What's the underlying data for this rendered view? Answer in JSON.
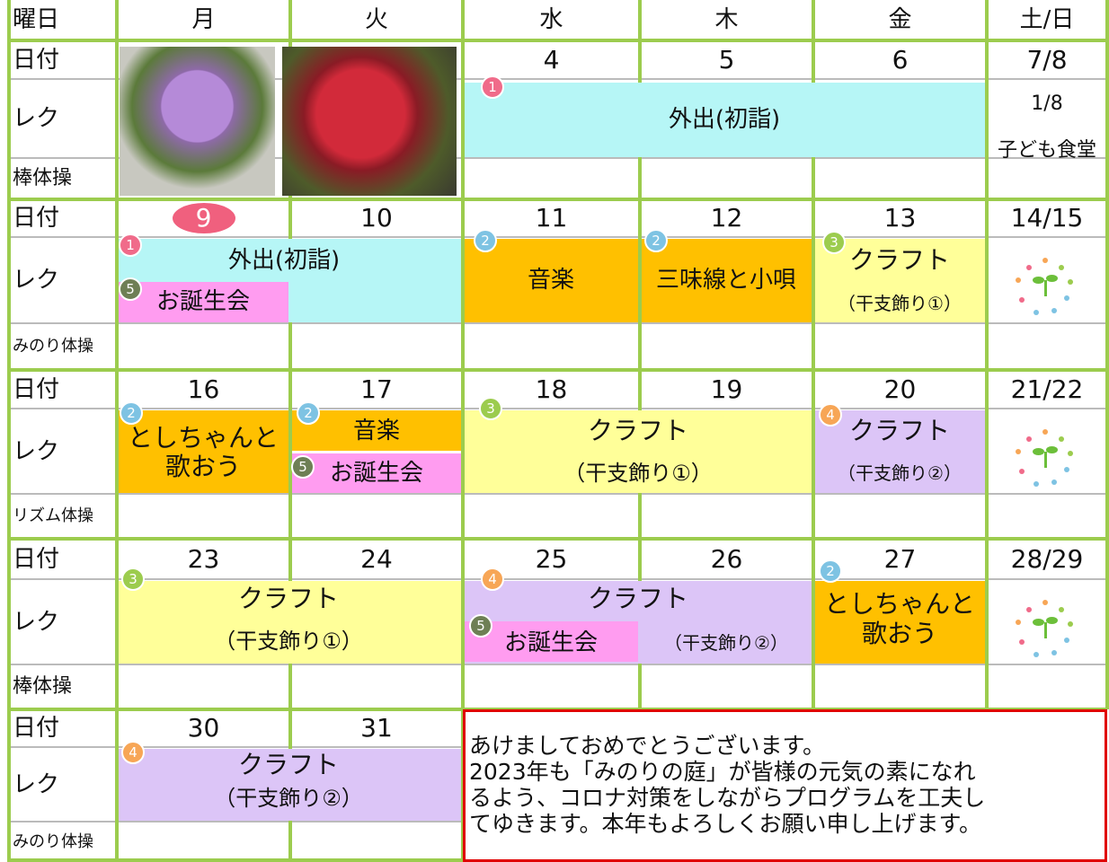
{
  "header": [
    "曜日",
    "月",
    "火",
    "水",
    "木",
    "金",
    "土/日"
  ],
  "weeks": [
    {
      "labels": [
        "日付",
        "レク",
        "棒体操"
      ],
      "dates": [
        null,
        null,
        "4",
        "5",
        "6",
        "7/8"
      ],
      "note": [
        "1/8",
        "子ども食堂"
      ],
      "events": [
        {
          "badge": "1",
          "text": [
            "外出(初詣)"
          ]
        }
      ]
    },
    {
      "labels": [
        "日付",
        "レク",
        "みのり体操"
      ],
      "dates": [
        "9",
        "10",
        "11",
        "12",
        "13",
        "14/15"
      ],
      "events": [
        {
          "badge": "1",
          "text": [
            "外出(初詣)"
          ]
        },
        {
          "badge": "5",
          "text": [
            "お誕生会"
          ]
        },
        {
          "badge": "2",
          "text": [
            "音楽"
          ]
        },
        {
          "badge": "2",
          "text": [
            "三味線と小唄"
          ]
        },
        {
          "badge": "3",
          "text": [
            "クラフト",
            "（干支飾り①）"
          ]
        }
      ]
    },
    {
      "labels": [
        "日付",
        "レク",
        "リズム体操"
      ],
      "dates": [
        "16",
        "17",
        "18",
        "19",
        "20",
        "21/22"
      ],
      "events": [
        {
          "badge": "2",
          "text": [
            "としちゃんと",
            "歌おう"
          ]
        },
        {
          "badge": "2",
          "text": [
            "音楽"
          ]
        },
        {
          "badge": "5",
          "text": [
            "お誕生会"
          ]
        },
        {
          "badge": "3",
          "text": [
            "クラフト",
            "（干支飾り①）"
          ]
        },
        {
          "badge": "4",
          "text": [
            "クラフト",
            "（干支飾り②）"
          ]
        }
      ]
    },
    {
      "labels": [
        "日付",
        "レク",
        "棒体操"
      ],
      "dates": [
        "23",
        "24",
        "25",
        "26",
        "27",
        "28/29"
      ],
      "events": [
        {
          "badge": "3",
          "text": [
            "クラフト",
            "（干支飾り①）"
          ]
        },
        {
          "badge": "4",
          "text": [
            "クラフト",
            "（干支飾り②）"
          ]
        },
        {
          "badge": "5",
          "text": [
            "お誕生会"
          ]
        },
        {
          "badge": "2",
          "text": [
            "としちゃんと",
            "歌おう"
          ]
        }
      ]
    },
    {
      "labels": [
        "日付",
        "レク",
        "みのり体操"
      ],
      "dates": [
        "30",
        "31"
      ],
      "events": [
        {
          "badge": "4",
          "text": [
            "クラフト",
            "（干支飾り②）"
          ]
        }
      ]
    }
  ],
  "message": [
    "あけましておめでとうございます。",
    "2023年も「みのりの庭」が皆様の元気の素になれ",
    "るよう、コロナ対策をしながらプログラムを工夫し",
    "てゆきます。本年もよろしくお願い申し上げます。"
  ]
}
